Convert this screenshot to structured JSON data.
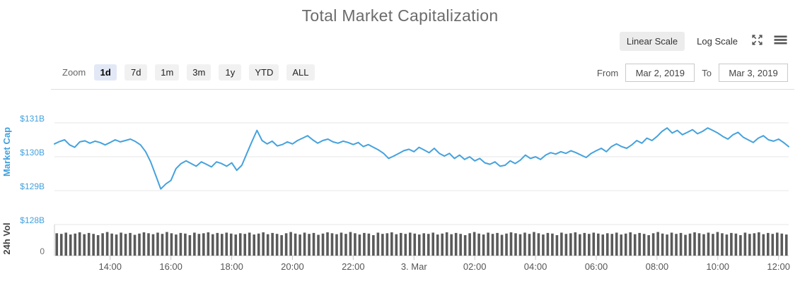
{
  "header": {
    "title": "Total Market Capitalization"
  },
  "scale_toggle": {
    "linear_label": "Linear Scale",
    "log_label": "Log Scale",
    "selected": "linear"
  },
  "icons": {
    "fullscreen": "fullscreen-expand-icon",
    "menu": "hamburger-menu-icon"
  },
  "zoom_bar": {
    "label": "Zoom",
    "options": [
      "1d",
      "7d",
      "1m",
      "3m",
      "1y",
      "YTD",
      "ALL"
    ],
    "selected": "1d",
    "from_label": "From",
    "from_value": "Mar 2, 2019",
    "to_label": "To",
    "to_value": "Mar 3, 2019"
  },
  "chart_data": {
    "type": "line",
    "title": "Total Market Capitalization",
    "colors": {
      "line": "#45a2dd",
      "axis_label_blue": "#42a1de",
      "volume_bar": "#5a5a5a",
      "gridline": "#e7e7e7",
      "axisline": "#cccccc",
      "x_label": "#555555",
      "zero_label": "#707070",
      "vol_title": "#444444"
    },
    "y_axis": {
      "label": "Market Cap",
      "tick_labels": [
        "$131B",
        "$130B",
        "$129B",
        "$128B"
      ],
      "tick_values": [
        131,
        130,
        129,
        128
      ],
      "unit": "USD billions"
    },
    "vol_axis": {
      "label": "24h Vol",
      "zero_label": "0"
    },
    "x_axis": {
      "span_minutes": 1450,
      "start": "2019-03-02 12:10",
      "end": "2019-03-03 12:20",
      "ticks": [
        {
          "label": "14:00",
          "min": 110
        },
        {
          "label": "16:00",
          "min": 230
        },
        {
          "label": "18:00",
          "min": 350
        },
        {
          "label": "20:00",
          "min": 470
        },
        {
          "label": "22:00",
          "min": 590
        },
        {
          "label": "3. Mar",
          "min": 710
        },
        {
          "label": "02:00",
          "min": 830
        },
        {
          "label": "04:00",
          "min": 950
        },
        {
          "label": "06:00",
          "min": 1070
        },
        {
          "label": "08:00",
          "min": 1190
        },
        {
          "label": "10:00",
          "min": 1310
        },
        {
          "label": "12:00",
          "min": 1430
        }
      ]
    },
    "series": [
      {
        "name": "Market Cap",
        "type": "line",
        "step_minutes": 10,
        "observed_min": 129.0,
        "observed_max": 130.85,
        "values": [
          130.38,
          130.45,
          130.5,
          130.35,
          130.28,
          130.44,
          130.47,
          130.4,
          130.46,
          130.42,
          130.35,
          130.42,
          130.5,
          130.44,
          130.48,
          130.52,
          130.45,
          130.35,
          130.15,
          129.85,
          129.45,
          129.05,
          129.2,
          129.3,
          129.65,
          129.8,
          129.88,
          129.8,
          129.72,
          129.85,
          129.78,
          129.7,
          129.85,
          129.8,
          129.72,
          129.82,
          129.6,
          129.75,
          130.1,
          130.45,
          130.78,
          130.48,
          130.38,
          130.46,
          130.32,
          130.36,
          130.44,
          130.38,
          130.48,
          130.55,
          130.62,
          130.5,
          130.4,
          130.48,
          130.52,
          130.44,
          130.4,
          130.46,
          130.42,
          130.36,
          130.42,
          130.3,
          130.36,
          130.28,
          130.2,
          130.1,
          129.95,
          130.02,
          130.1,
          130.18,
          130.22,
          130.15,
          130.28,
          130.2,
          130.12,
          130.25,
          130.1,
          130.02,
          130.1,
          129.95,
          130.05,
          129.92,
          130.0,
          129.88,
          129.95,
          129.82,
          129.78,
          129.85,
          129.72,
          129.75,
          129.88,
          129.8,
          129.9,
          130.05,
          129.95,
          130.0,
          129.92,
          130.05,
          130.12,
          130.08,
          130.15,
          130.1,
          130.18,
          130.12,
          130.05,
          129.98,
          130.1,
          130.18,
          130.25,
          130.15,
          130.3,
          130.38,
          130.3,
          130.25,
          130.35,
          130.48,
          130.4,
          130.55,
          130.48,
          130.6,
          130.75,
          130.85,
          130.7,
          130.78,
          130.65,
          130.72,
          130.8,
          130.68,
          130.75,
          130.85,
          130.78,
          130.7,
          130.6,
          130.52,
          130.65,
          130.72,
          130.58,
          130.5,
          130.42,
          130.55,
          130.62,
          130.5,
          130.46,
          130.52,
          130.42,
          130.3
        ]
      },
      {
        "name": "24h Vol",
        "type": "bar",
        "bar_count": 160,
        "pattern_repeats": 4,
        "relative_heights_pattern": [
          0.72,
          0.7,
          0.74,
          0.68,
          0.71,
          0.75,
          0.69,
          0.73,
          0.7,
          0.66,
          0.72,
          0.76,
          0.71,
          0.68,
          0.74,
          0.7,
          0.73,
          0.67,
          0.71,
          0.75,
          0.72,
          0.69,
          0.74,
          0.7,
          0.76,
          0.72,
          0.68,
          0.73,
          0.71,
          0.66,
          0.74,
          0.7,
          0.72,
          0.75,
          0.69,
          0.73,
          0.7,
          0.74,
          0.71,
          0.68
        ]
      }
    ]
  }
}
